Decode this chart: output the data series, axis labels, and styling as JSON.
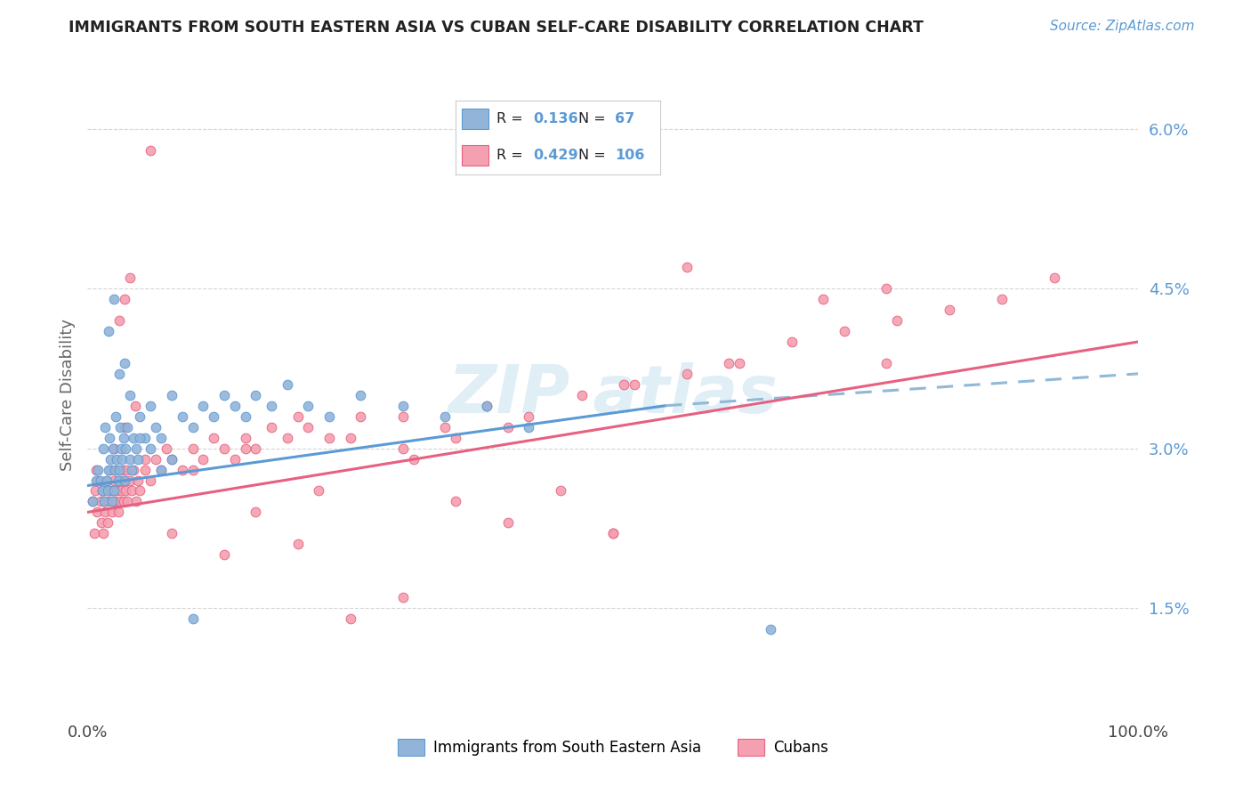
{
  "title": "IMMIGRANTS FROM SOUTH EASTERN ASIA VS CUBAN SELF-CARE DISABILITY CORRELATION CHART",
  "source_text": "Source: ZipAtlas.com",
  "ylabel": "Self-Care Disability",
  "xmin": 0.0,
  "xmax": 1.0,
  "ymin": 0.005,
  "ymax": 0.065,
  "yticks": [
    0.015,
    0.03,
    0.045,
    0.06
  ],
  "ytick_labels": [
    "1.5%",
    "3.0%",
    "4.5%",
    "6.0%"
  ],
  "xticks": [
    0.0,
    1.0
  ],
  "xtick_labels": [
    "0.0%",
    "100.0%"
  ],
  "color_blue": "#92B4D9",
  "color_pink": "#F4A0B0",
  "trend_blue": "#5B9BD5",
  "trend_pink": "#E86080",
  "trend_blue_dash": "#90B8D8",
  "watermark": "ZIPAtlas",
  "background_color": "#FFFFFF",
  "grid_color": "#CCCCCC",
  "blue_scatter_x": [
    0.005,
    0.008,
    0.01,
    0.012,
    0.014,
    0.015,
    0.016,
    0.017,
    0.018,
    0.019,
    0.02,
    0.021,
    0.022,
    0.023,
    0.024,
    0.025,
    0.026,
    0.027,
    0.028,
    0.029,
    0.03,
    0.031,
    0.032,
    0.033,
    0.034,
    0.035,
    0.036,
    0.038,
    0.04,
    0.042,
    0.044,
    0.046,
    0.048,
    0.05,
    0.055,
    0.06,
    0.065,
    0.07,
    0.08,
    0.09,
    0.1,
    0.11,
    0.12,
    0.13,
    0.14,
    0.15,
    0.16,
    0.175,
    0.19,
    0.21,
    0.23,
    0.26,
    0.3,
    0.34,
    0.38,
    0.42,
    0.02,
    0.025,
    0.03,
    0.035,
    0.04,
    0.05,
    0.06,
    0.07,
    0.08,
    0.1,
    0.65
  ],
  "blue_scatter_y": [
    0.025,
    0.027,
    0.028,
    0.027,
    0.026,
    0.03,
    0.025,
    0.032,
    0.027,
    0.026,
    0.028,
    0.031,
    0.029,
    0.025,
    0.03,
    0.026,
    0.028,
    0.033,
    0.029,
    0.027,
    0.028,
    0.032,
    0.03,
    0.029,
    0.031,
    0.027,
    0.03,
    0.032,
    0.029,
    0.028,
    0.031,
    0.03,
    0.029,
    0.033,
    0.031,
    0.034,
    0.032,
    0.031,
    0.035,
    0.033,
    0.032,
    0.034,
    0.033,
    0.035,
    0.034,
    0.033,
    0.035,
    0.034,
    0.036,
    0.034,
    0.033,
    0.035,
    0.034,
    0.033,
    0.034,
    0.032,
    0.041,
    0.044,
    0.037,
    0.038,
    0.035,
    0.031,
    0.03,
    0.028,
    0.029,
    0.014,
    0.013
  ],
  "pink_scatter_x": [
    0.005,
    0.006,
    0.007,
    0.008,
    0.009,
    0.01,
    0.012,
    0.013,
    0.014,
    0.015,
    0.016,
    0.017,
    0.018,
    0.019,
    0.02,
    0.021,
    0.022,
    0.023,
    0.024,
    0.025,
    0.026,
    0.027,
    0.028,
    0.029,
    0.03,
    0.031,
    0.032,
    0.033,
    0.034,
    0.035,
    0.036,
    0.037,
    0.038,
    0.04,
    0.042,
    0.044,
    0.046,
    0.048,
    0.05,
    0.055,
    0.06,
    0.065,
    0.07,
    0.075,
    0.08,
    0.09,
    0.1,
    0.11,
    0.12,
    0.13,
    0.14,
    0.15,
    0.16,
    0.175,
    0.19,
    0.21,
    0.23,
    0.26,
    0.3,
    0.34,
    0.38,
    0.42,
    0.47,
    0.52,
    0.57,
    0.62,
    0.67,
    0.72,
    0.77,
    0.82,
    0.87,
    0.92,
    0.025,
    0.035,
    0.045,
    0.055,
    0.1,
    0.15,
    0.2,
    0.25,
    0.3,
    0.35,
    0.4,
    0.13,
    0.2,
    0.25,
    0.3,
    0.35,
    0.4,
    0.45,
    0.5,
    0.7,
    0.76,
    0.57,
    0.31,
    0.51,
    0.76,
    0.61,
    0.5,
    0.22,
    0.16,
    0.08,
    0.06,
    0.04,
    0.035,
    0.03
  ],
  "pink_scatter_y": [
    0.025,
    0.022,
    0.026,
    0.028,
    0.024,
    0.027,
    0.025,
    0.023,
    0.026,
    0.022,
    0.025,
    0.024,
    0.027,
    0.023,
    0.025,
    0.026,
    0.028,
    0.024,
    0.026,
    0.027,
    0.025,
    0.028,
    0.026,
    0.024,
    0.027,
    0.025,
    0.026,
    0.028,
    0.025,
    0.027,
    0.026,
    0.028,
    0.025,
    0.027,
    0.026,
    0.028,
    0.025,
    0.027,
    0.026,
    0.028,
    0.027,
    0.029,
    0.028,
    0.03,
    0.029,
    0.028,
    0.03,
    0.029,
    0.031,
    0.03,
    0.029,
    0.031,
    0.03,
    0.032,
    0.031,
    0.032,
    0.031,
    0.033,
    0.033,
    0.032,
    0.034,
    0.033,
    0.035,
    0.036,
    0.037,
    0.038,
    0.04,
    0.041,
    0.042,
    0.043,
    0.044,
    0.046,
    0.03,
    0.032,
    0.034,
    0.029,
    0.028,
    0.03,
    0.033,
    0.031,
    0.03,
    0.031,
    0.032,
    0.02,
    0.021,
    0.014,
    0.016,
    0.025,
    0.023,
    0.026,
    0.022,
    0.044,
    0.038,
    0.047,
    0.029,
    0.036,
    0.045,
    0.038,
    0.022,
    0.026,
    0.024,
    0.022,
    0.058,
    0.046,
    0.044,
    0.042
  ]
}
